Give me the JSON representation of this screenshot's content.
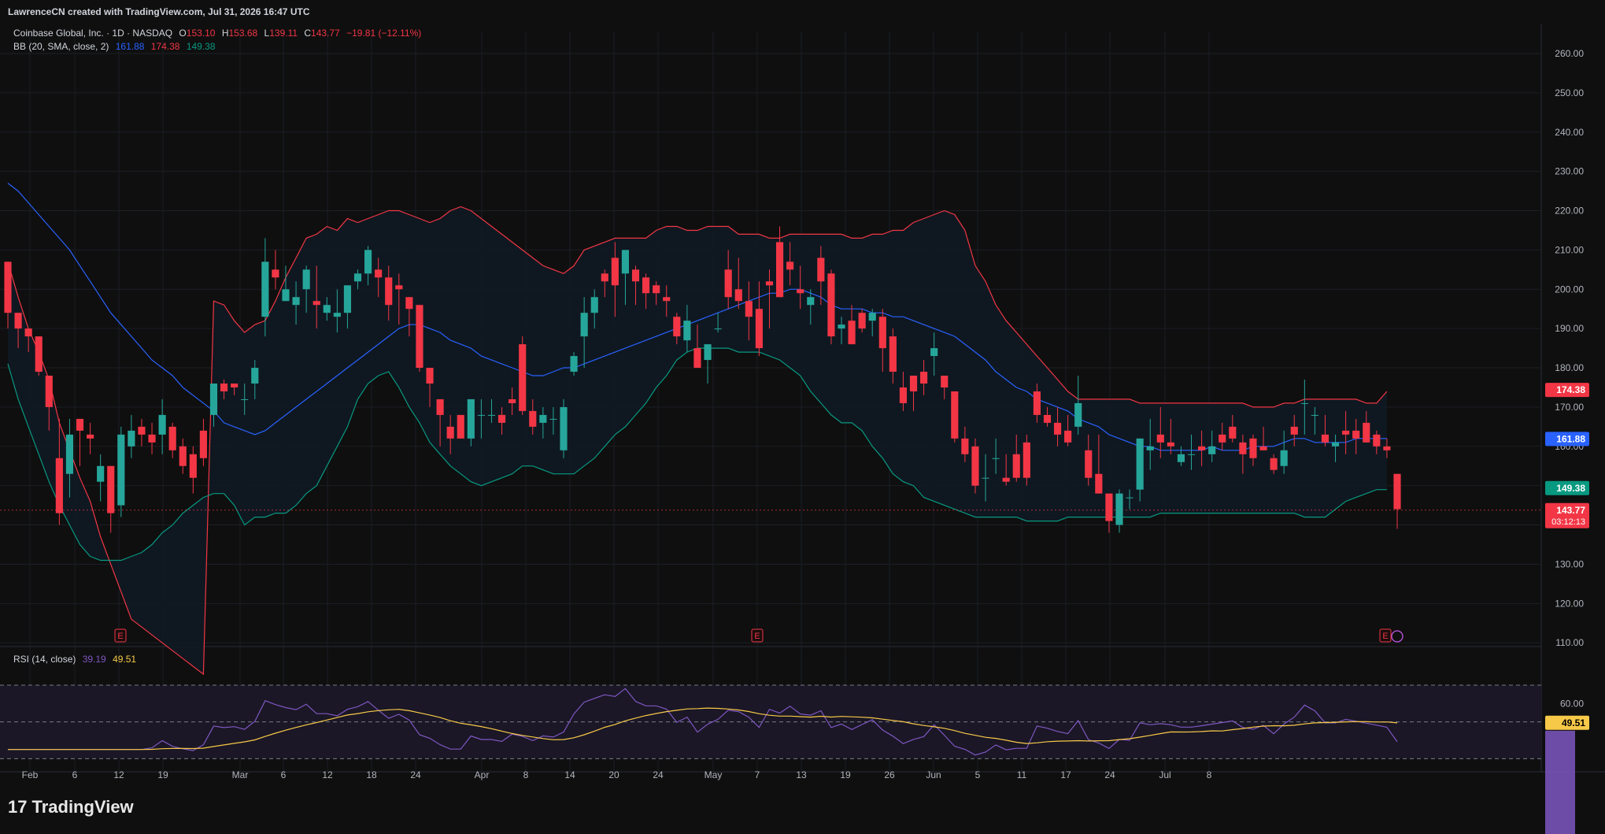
{
  "header": {
    "attribution": "LawrenceCN created with TradingView.com, Jul 31, 2026 16:47 UTC"
  },
  "legend": {
    "symbol": "Coinbase Global, Inc. · 1D · NASDAQ",
    "o_label": "O",
    "o_value": "153.10",
    "h_label": "H",
    "h_value": "153.68",
    "l_label": "L",
    "l_value": "139.11",
    "c_label": "C",
    "c_value": "143.77",
    "change": "−19.81 (−12.11%)",
    "bb_label": "BB (20, SMA, close, 2)",
    "bb_basis": "161.88",
    "bb_upper": "174.38",
    "bb_lower": "149.38",
    "rsi_label": "RSI (14, close)",
    "rsi_value": "39.19",
    "rsi_ma": "49.51"
  },
  "price_badges": {
    "upper": "174.38",
    "basis": "161.88",
    "lower": "149.38",
    "last": "143.77",
    "countdown": "03:12:13",
    "rsi_ma": "49.51"
  },
  "brand": {
    "logo": "17",
    "name": "TradingView"
  },
  "colors": {
    "up": "#26a69a",
    "down": "#f23645",
    "bb_upper": "#f23645",
    "bb_basis": "#2962ff",
    "bb_lower": "#089981",
    "rsi": "#7e57c2",
    "rsi_ma": "#f7c948",
    "band_fill": "#101a24"
  },
  "chart_data": [
    {
      "type": "candlestick",
      "title": "Coinbase Global, Inc. · 1D · NASDAQ",
      "y_ticks": [
        "260.00",
        "250.00",
        "240.00",
        "230.00",
        "220.00",
        "210.00",
        "200.00",
        "190.00",
        "180.00",
        "170.00",
        "160.00",
        "150.00",
        "140.00",
        "130.00",
        "120.00",
        "110.00"
      ],
      "x_ticks": [
        "Feb",
        "6",
        "12",
        "19",
        "Mar",
        "6",
        "12",
        "18",
        "24",
        "Apr",
        "8",
        "14",
        "20",
        "24",
        "May",
        "7",
        "13",
        "19",
        "26",
        "Jun",
        "5",
        "11",
        "17",
        "24",
        "Jul",
        "8"
      ],
      "ylim": [
        110,
        264
      ],
      "grid": true,
      "earnings_markers": [
        "E",
        "E",
        "E"
      ],
      "candles_ohlc": [
        [
          207,
          207,
          190,
          194
        ],
        [
          194,
          194,
          185,
          190
        ],
        [
          190,
          190,
          184,
          188
        ],
        [
          188,
          188,
          178,
          179
        ],
        [
          178,
          178,
          164,
          170
        ],
        [
          157,
          167,
          140,
          143
        ],
        [
          153,
          167,
          147,
          163
        ],
        [
          167,
          167,
          155,
          164
        ],
        [
          163,
          166,
          158,
          162
        ],
        [
          151,
          158,
          146,
          155
        ],
        [
          155,
          155,
          138,
          143
        ],
        [
          145,
          165,
          142,
          163
        ],
        [
          160,
          168,
          157,
          164
        ],
        [
          165,
          167,
          160,
          163
        ],
        [
          163,
          166,
          158,
          161
        ],
        [
          163,
          172,
          158,
          168
        ],
        [
          165,
          166,
          157,
          159
        ],
        [
          160,
          162,
          153,
          155
        ],
        [
          158,
          160,
          148,
          152
        ],
        [
          164,
          167,
          155,
          157
        ],
        [
          168,
          176,
          165,
          176
        ],
        [
          176,
          177,
          172,
          174
        ],
        [
          176,
          176,
          173,
          175
        ],
        [
          172,
          176,
          168,
          172
        ],
        [
          176,
          182,
          172,
          180
        ],
        [
          193,
          213,
          188,
          207
        ],
        [
          205,
          210,
          200,
          203
        ],
        [
          197,
          206,
          197,
          200
        ],
        [
          196,
          202,
          191,
          198
        ],
        [
          200,
          206,
          194,
          205
        ],
        [
          197,
          206,
          190,
          196
        ],
        [
          194,
          198,
          192,
          196
        ],
        [
          193,
          200,
          189,
          194
        ],
        [
          194,
          198,
          190,
          201
        ],
        [
          202,
          205,
          200,
          204
        ],
        [
          204,
          211,
          201,
          210
        ],
        [
          205,
          208,
          198,
          203
        ],
        [
          203,
          206,
          192,
          196
        ],
        [
          201,
          204,
          191,
          200
        ],
        [
          198,
          198,
          188,
          195
        ],
        [
          196,
          196,
          179,
          180
        ],
        [
          180,
          180,
          170,
          176
        ],
        [
          172,
          172,
          160,
          168
        ],
        [
          165,
          168,
          158,
          162
        ],
        [
          168,
          168,
          162,
          162
        ],
        [
          162,
          172,
          160,
          172
        ],
        [
          168,
          172,
          162,
          168
        ],
        [
          168,
          172,
          166,
          168
        ],
        [
          168,
          170,
          163,
          166
        ],
        [
          172,
          175,
          168,
          171
        ],
        [
          186,
          188,
          168,
          169
        ],
        [
          169,
          172,
          163,
          165
        ],
        [
          166,
          170,
          162,
          168
        ],
        [
          167,
          170,
          163,
          167
        ],
        [
          159,
          172,
          157,
          170
        ],
        [
          179,
          184,
          178,
          183
        ],
        [
          188,
          198,
          180,
          194
        ],
        [
          194,
          200,
          190,
          198
        ],
        [
          204,
          205,
          198,
          202
        ],
        [
          208,
          212,
          193,
          201
        ],
        [
          204,
          210,
          196,
          210
        ],
        [
          205,
          206,
          196,
          202
        ],
        [
          203,
          204,
          195,
          199
        ],
        [
          201,
          202,
          196,
          199
        ],
        [
          198,
          201,
          193,
          197
        ],
        [
          193,
          194,
          186,
          188
        ],
        [
          187,
          196,
          184,
          192
        ],
        [
          185,
          191,
          180,
          180
        ],
        [
          182,
          185,
          176,
          186
        ],
        [
          190,
          194,
          189,
          190
        ],
        [
          205,
          210,
          195,
          198
        ],
        [
          200,
          208,
          195,
          197
        ],
        [
          197,
          202,
          187,
          193
        ],
        [
          195,
          202,
          183,
          185
        ],
        [
          202,
          205,
          190,
          201
        ],
        [
          212,
          216,
          198,
          198
        ],
        [
          207,
          212,
          201,
          205
        ],
        [
          200,
          206,
          195,
          199
        ],
        [
          196,
          200,
          191,
          198
        ],
        [
          208,
          211,
          196,
          202
        ],
        [
          204,
          205,
          186,
          188
        ],
        [
          190,
          193,
          186,
          191
        ],
        [
          192,
          196,
          186,
          186
        ],
        [
          194,
          195,
          189,
          190
        ],
        [
          192,
          195,
          188,
          194
        ],
        [
          193,
          195,
          179,
          185
        ],
        [
          188,
          190,
          176,
          179
        ],
        [
          175,
          179,
          169,
          171
        ],
        [
          178,
          178,
          169,
          174
        ],
        [
          179,
          182,
          173,
          176
        ],
        [
          183,
          189,
          178,
          185
        ],
        [
          178,
          178,
          172,
          175
        ],
        [
          174,
          174,
          161,
          162
        ],
        [
          162,
          165,
          156,
          158
        ],
        [
          160,
          162,
          148,
          150
        ],
        [
          152,
          158,
          146,
          152
        ],
        [
          157,
          162,
          153,
          157
        ],
        [
          152,
          158,
          150,
          151
        ],
        [
          158,
          163,
          151,
          152
        ],
        [
          161,
          163,
          150,
          152
        ],
        [
          174,
          176,
          166,
          168
        ],
        [
          168,
          170,
          165,
          166
        ],
        [
          166,
          170,
          160,
          163
        ],
        [
          164,
          168,
          160,
          161
        ],
        [
          165,
          178,
          163,
          171
        ],
        [
          159,
          163,
          150,
          152
        ],
        [
          153,
          163,
          148,
          148
        ],
        [
          148,
          148,
          138,
          141
        ],
        [
          140,
          149,
          138,
          148
        ],
        [
          147,
          149,
          144,
          147
        ],
        [
          149,
          162,
          146,
          162
        ],
        [
          159,
          167,
          154,
          160
        ],
        [
          163,
          170,
          157,
          161
        ],
        [
          161,
          167,
          158,
          160
        ],
        [
          156,
          160,
          155,
          158
        ],
        [
          158,
          163,
          154,
          158
        ],
        [
          160,
          164,
          155,
          159
        ],
        [
          158,
          164,
          156,
          160
        ],
        [
          163,
          166,
          159,
          161
        ],
        [
          165,
          168,
          161,
          162
        ],
        [
          161,
          163,
          153,
          158
        ],
        [
          162,
          163,
          155,
          157
        ],
        [
          160,
          165,
          159,
          159
        ],
        [
          157,
          158,
          153,
          154
        ],
        [
          155,
          164,
          153,
          159
        ],
        [
          165,
          168,
          160,
          163
        ],
        [
          171,
          177,
          163,
          171
        ],
        [
          168,
          170,
          163,
          168
        ],
        [
          163,
          168,
          160,
          161
        ],
        [
          160,
          163,
          156,
          161
        ],
        [
          164,
          169,
          158,
          163
        ],
        [
          164,
          167,
          158,
          162
        ],
        [
          166,
          169,
          161,
          161
        ],
        [
          163,
          164,
          158,
          160
        ],
        [
          160,
          162,
          157,
          159
        ],
        [
          153,
          153,
          139,
          144
        ]
      ],
      "bb_upper": [
        207,
        198,
        190,
        184,
        177,
        166,
        159,
        152,
        146,
        137,
        130,
        123,
        116,
        114,
        112,
        110,
        108,
        106,
        104,
        102,
        197,
        196,
        192,
        189,
        191,
        192,
        197,
        203,
        208,
        213,
        214,
        216,
        215,
        218,
        217,
        218,
        219,
        220,
        220,
        219,
        218,
        217,
        218,
        220,
        221,
        220,
        218,
        216,
        214,
        212,
        210,
        208,
        206,
        205,
        204,
        206,
        210,
        211,
        212,
        213,
        213,
        213,
        213,
        215,
        216,
        216,
        215,
        215,
        216,
        216,
        216,
        214,
        214,
        214,
        213,
        213,
        214,
        214,
        214,
        214,
        214,
        214,
        213,
        213,
        214,
        214,
        215,
        215,
        217,
        218,
        219,
        220,
        219,
        215,
        206,
        202,
        196,
        192,
        189,
        186,
        183,
        180,
        177,
        174,
        172,
        172,
        172,
        172,
        172,
        172,
        171,
        171,
        171,
        171,
        171,
        171,
        171,
        171,
        171,
        171,
        171,
        170,
        170,
        170,
        171,
        171,
        172,
        172,
        172,
        172,
        172,
        172,
        171,
        171,
        174
      ],
      "bb_basis": [
        227,
        225,
        222,
        219,
        216,
        213,
        210,
        206,
        202,
        198,
        194,
        191,
        188,
        185,
        182,
        180,
        178,
        175,
        173,
        171,
        169,
        166,
        165,
        164,
        163,
        164,
        166,
        168,
        170,
        172,
        174,
        176,
        178,
        180,
        182,
        184,
        186,
        188,
        190,
        191,
        191,
        190,
        189,
        187,
        186,
        185,
        183,
        182,
        181,
        180,
        179,
        178,
        178,
        179,
        180,
        180,
        181,
        182,
        183,
        184,
        185,
        186,
        187,
        188,
        189,
        190,
        191,
        192,
        193,
        194,
        195,
        196,
        197,
        198,
        199,
        199,
        200,
        200,
        199,
        198,
        196,
        195,
        195,
        195,
        194,
        194,
        193,
        193,
        192,
        191,
        190,
        189,
        188,
        186,
        184,
        182,
        179,
        177,
        175,
        174,
        172,
        171,
        170,
        169,
        167,
        166,
        165,
        163,
        162,
        161,
        160,
        160,
        159,
        159,
        159,
        159,
        159,
        160,
        159,
        159,
        159,
        160,
        160,
        160,
        161,
        162,
        162,
        161,
        161,
        161,
        161,
        162,
        162,
        162,
        162
      ],
      "bb_lower": [
        181,
        172,
        165,
        158,
        151,
        145,
        140,
        135,
        132,
        131,
        131,
        131,
        132,
        133,
        135,
        138,
        140,
        143,
        145,
        147,
        148,
        148,
        145,
        140,
        142,
        142,
        143,
        143,
        145,
        148,
        150,
        155,
        160,
        165,
        172,
        176,
        178,
        179,
        175,
        170,
        166,
        161,
        158,
        155,
        153,
        151,
        150,
        151,
        152,
        153,
        155,
        155,
        154,
        153,
        153,
        153,
        155,
        157,
        160,
        163,
        165,
        168,
        171,
        175,
        178,
        182,
        184,
        185,
        185,
        185,
        185,
        184,
        184,
        184,
        183,
        182,
        180,
        178,
        174,
        171,
        168,
        166,
        166,
        164,
        160,
        157,
        153,
        151,
        150,
        147,
        146,
        145,
        144,
        143,
        142,
        142,
        142,
        142,
        142,
        141,
        141,
        141,
        141,
        142,
        142,
        142,
        142,
        142,
        142,
        142,
        142,
        142,
        143,
        143,
        143,
        143,
        143,
        143,
        143,
        143,
        143,
        143,
        143,
        143,
        143,
        143,
        142,
        142,
        142,
        144,
        146,
        147,
        148,
        149,
        149
      ],
      "last_price": 143.77
    },
    {
      "type": "line",
      "title": "RSI (14, close)",
      "y_ticks": [
        "60.00"
      ],
      "levels": [
        70,
        50,
        30
      ],
      "rsi_value": 39.19,
      "rsi_ma": 49.51
    }
  ]
}
